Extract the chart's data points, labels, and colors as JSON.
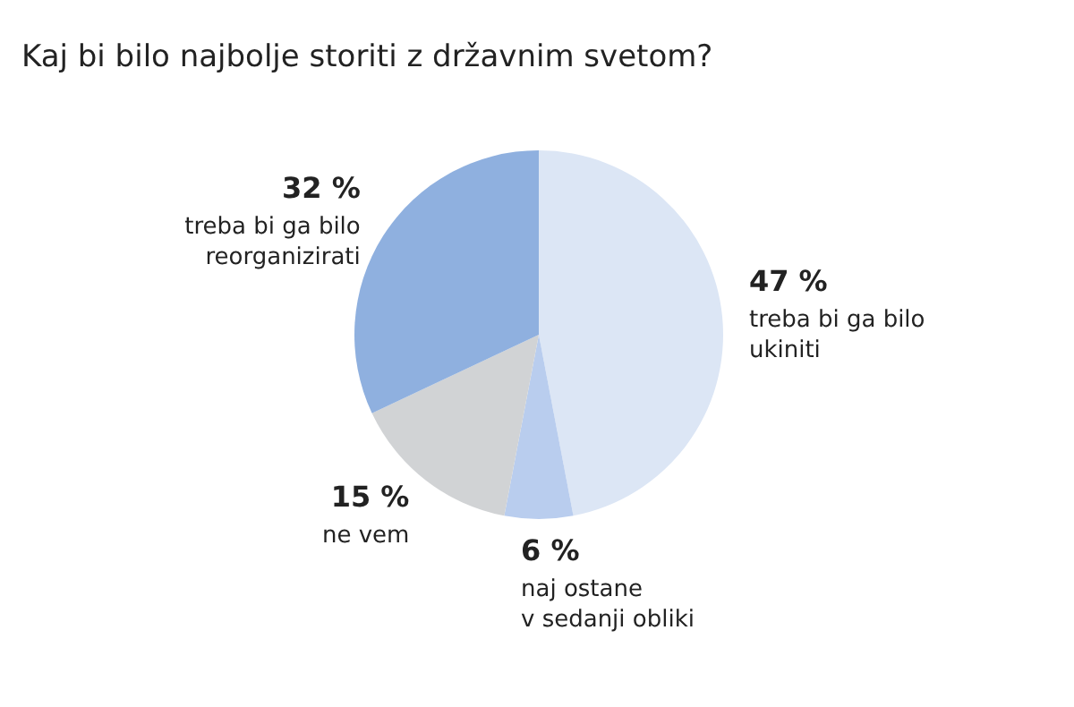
{
  "chart_data": {
    "type": "pie",
    "title": "Kaj bi bilo najbolje storiti z državnim svetom?",
    "categories": [
      "treba bi ga bilo\nukiniti",
      "naj ostane\nv sedanji obliki",
      "ne vem",
      "treba bi ga bilo\nreorganizirati"
    ],
    "values": [
      47,
      6,
      15,
      32
    ],
    "value_labels": [
      "47 %",
      "6 %",
      "15 %",
      "32 %"
    ],
    "colors": [
      "#dce6f5",
      "#b9cdee",
      "#d1d3d5",
      "#8fb0df"
    ]
  }
}
